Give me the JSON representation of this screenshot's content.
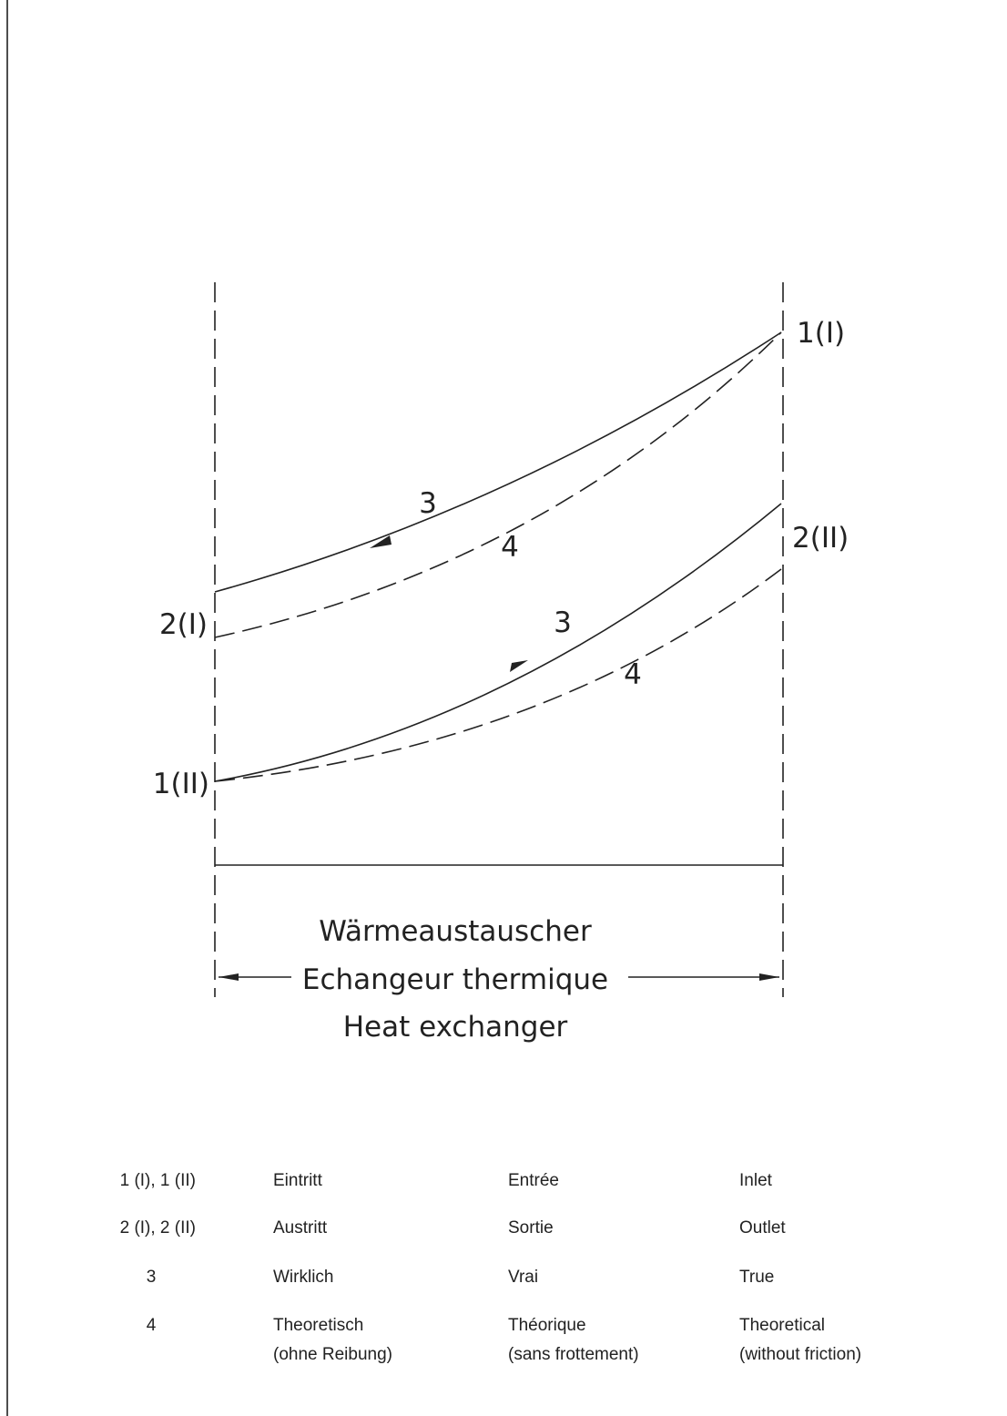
{
  "diagram": {
    "points": [
      "1(I)",
      "2(II)",
      "2(I)",
      "1(II)"
    ],
    "curves": [
      "3",
      "4",
      "3",
      "4"
    ],
    "exchanger": [
      "Wärmeaustauscher",
      "Echangeur thermique",
      "Heat exchanger"
    ]
  },
  "legend": {
    "rows": [
      [
        [
          "1 (I), 1 (II)"
        ],
        [
          "Eintritt"
        ],
        [
          "Entrée"
        ],
        [
          "Inlet"
        ]
      ],
      [
        [
          "2 (I), 2 (II)"
        ],
        [
          "Austritt"
        ],
        [
          "Sortie"
        ],
        [
          "Outlet"
        ]
      ],
      [
        [
          "3"
        ],
        [
          "Wirklich"
        ],
        [
          "Vrai"
        ],
        [
          "True"
        ]
      ],
      [
        [
          "4"
        ],
        [
          "Theoretisch",
          "(ohne Reibung)"
        ],
        [
          "Théorique",
          "(sans frottement)"
        ],
        [
          "Theoretical",
          "(without friction)"
        ]
      ]
    ]
  }
}
